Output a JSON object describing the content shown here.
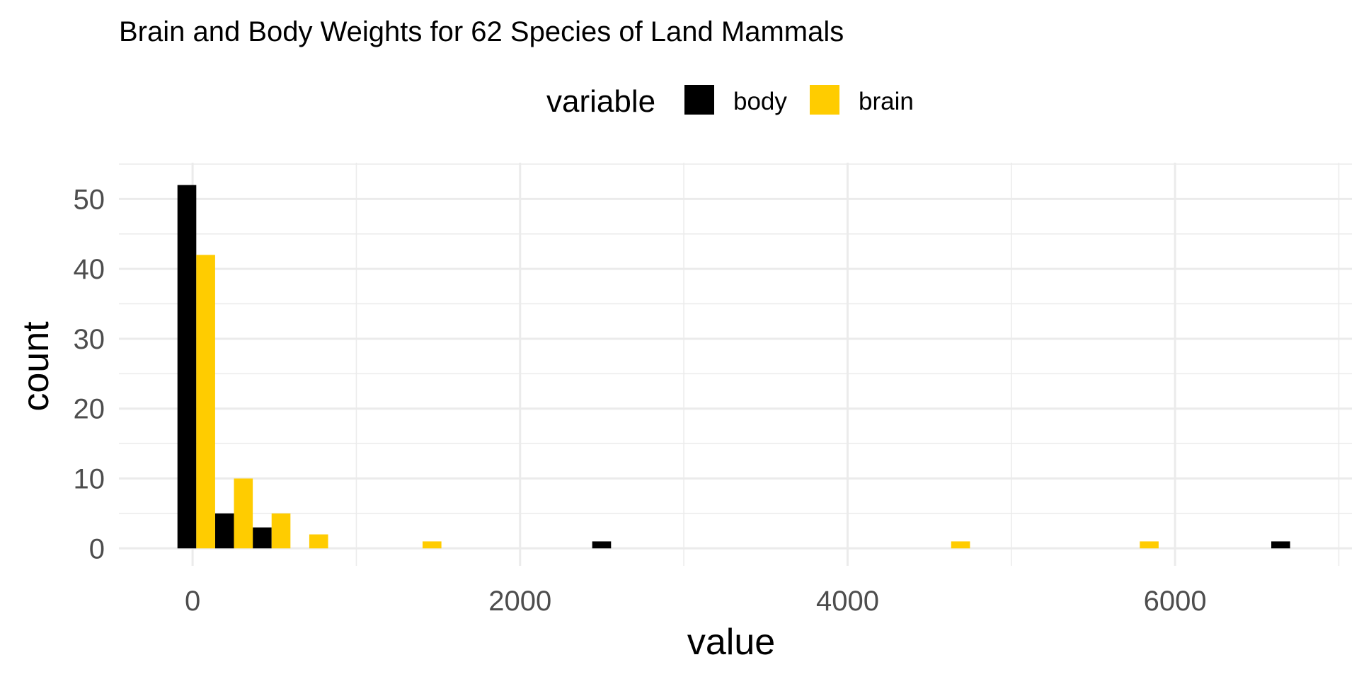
{
  "chart_data": {
    "type": "bar",
    "title": "Brain and Body Weights for 62 Species of Land Mammals",
    "xlabel": "value",
    "ylabel": "count",
    "legend": {
      "title": "variable",
      "placement": "top",
      "entries": [
        "body",
        "brain"
      ]
    },
    "xlim": [
      -450,
      7080
    ],
    "ylim": [
      -2.5,
      55.2
    ],
    "x_ticks": [
      0,
      2000,
      4000,
      6000
    ],
    "x_tick_labels": [
      "0",
      "2000",
      "4000",
      "6000"
    ],
    "y_ticks": [
      0,
      10,
      20,
      30,
      40,
      50
    ],
    "y_tick_labels": [
      "0",
      "10",
      "20",
      "30",
      "40",
      "50"
    ],
    "grid": true,
    "bin_width": 230,
    "bar_position": "dodge",
    "series": [
      {
        "name": "body",
        "color": "#000000",
        "bins": [
          {
            "x": -35,
            "count": 52
          },
          {
            "x": 195,
            "count": 5
          },
          {
            "x": 425,
            "count": 3
          },
          {
            "x": 2498,
            "count": 1
          },
          {
            "x": 6645,
            "count": 1
          }
        ]
      },
      {
        "name": "brain",
        "color": "#FFCC00",
        "bins": [
          {
            "x": 80,
            "count": 42
          },
          {
            "x": 310,
            "count": 10
          },
          {
            "x": 540,
            "count": 5
          },
          {
            "x": 770,
            "count": 2
          },
          {
            "x": 1462,
            "count": 1
          },
          {
            "x": 4690,
            "count": 1
          },
          {
            "x": 5842,
            "count": 1
          }
        ]
      }
    ]
  },
  "colors": {
    "background": "#FFFFFF",
    "grid": "#EBEBEB",
    "tick_text": "#4D4D4D",
    "text": "#000000"
  }
}
